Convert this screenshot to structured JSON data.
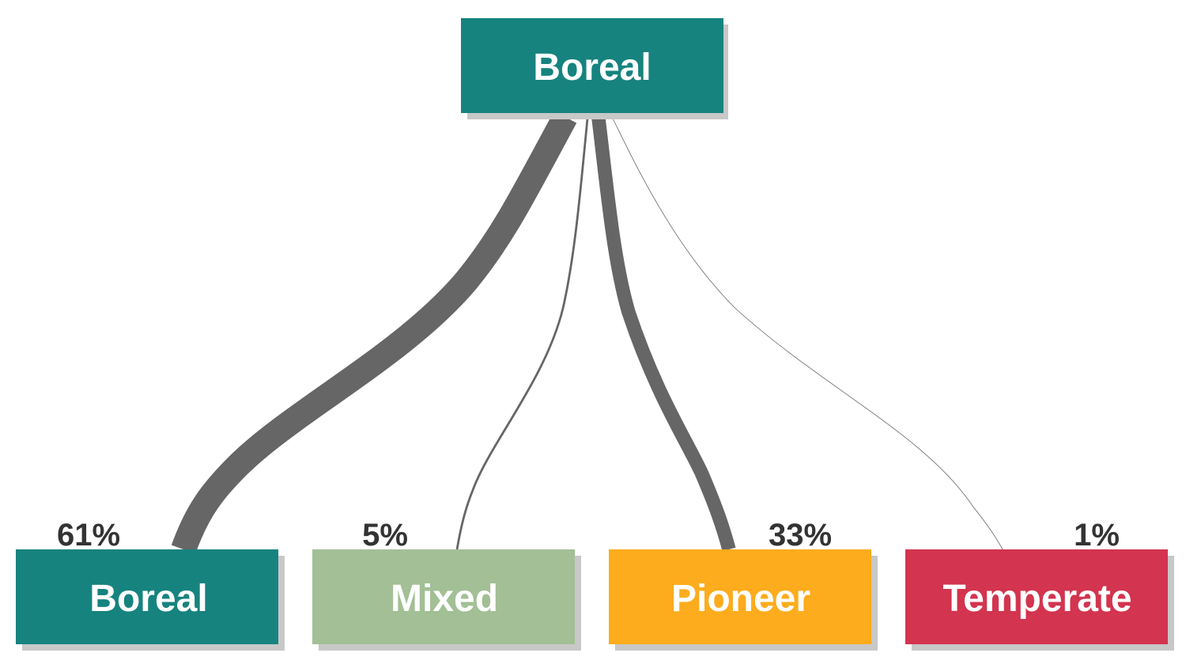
{
  "root": {
    "label": "Boreal",
    "color": "#16837f"
  },
  "children": [
    {
      "id": "boreal",
      "label": "Boreal",
      "percent_label": "61%",
      "share": 61,
      "color": "#16837f"
    },
    {
      "id": "mixed",
      "label": "Mixed",
      "percent_label": "5%",
      "share": 5,
      "color": "#a2bf95"
    },
    {
      "id": "pioneer",
      "label": "Pioneer",
      "percent_label": "33%",
      "share": 33,
      "color": "#fcac1c"
    },
    {
      "id": "temperate",
      "label": "Temperate",
      "percent_label": "1%",
      "share": 1,
      "color": "#d3344f"
    }
  ],
  "flow_color": "#666666",
  "shadow_color": "#c8c8c8"
}
